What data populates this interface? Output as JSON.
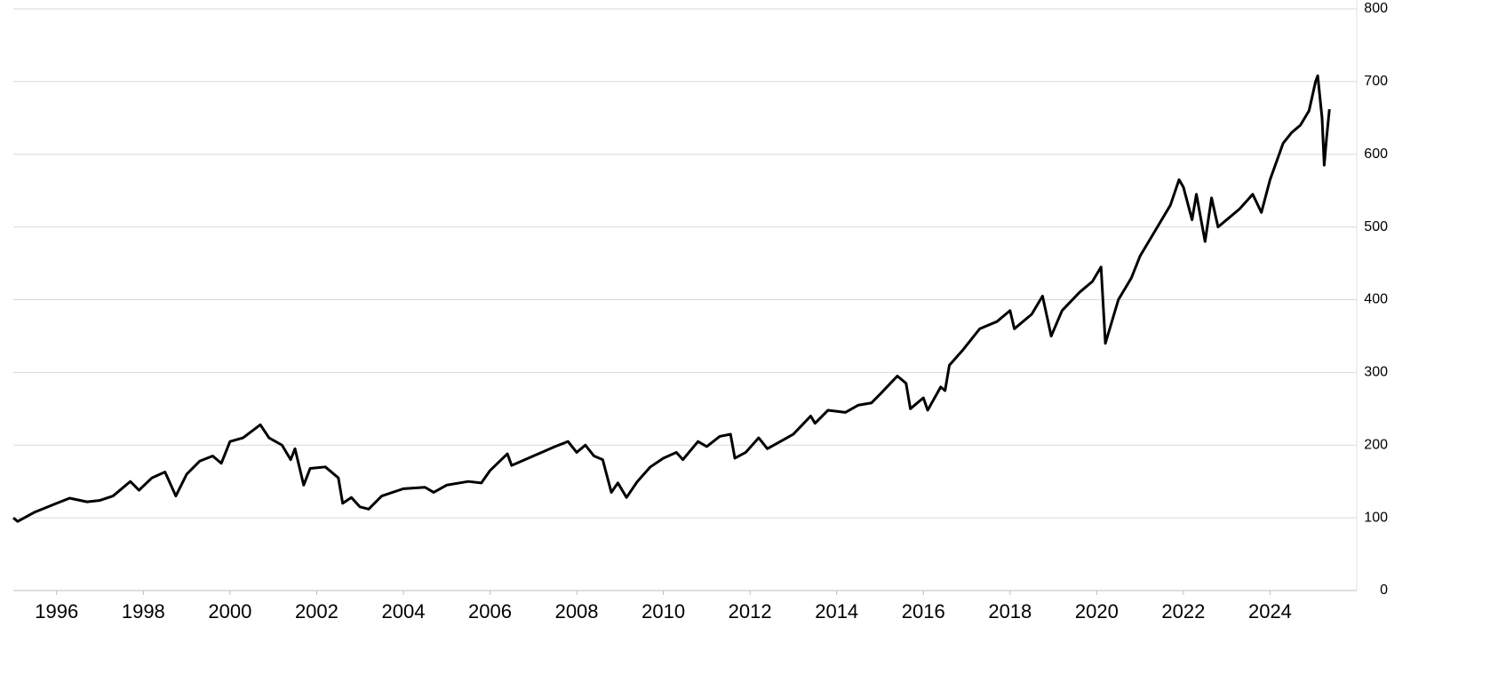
{
  "chart_data": {
    "type": "line",
    "color": "#000000",
    "grid": true,
    "y_axis_side": "right",
    "xlim": [
      1995,
      2026
    ],
    "xticks": [
      1996,
      1998,
      2000,
      2002,
      2004,
      2006,
      2008,
      2010,
      2012,
      2014,
      2016,
      2018,
      2020,
      2022,
      2024
    ],
    "ylim": [
      0,
      800
    ],
    "yticks": [
      0,
      100,
      200,
      300,
      400,
      500,
      600,
      700,
      800
    ],
    "x": [
      1995.0,
      1995.1,
      1995.5,
      1996.0,
      1996.3,
      1996.7,
      1997.0,
      1997.3,
      1997.7,
      1997.9,
      1998.2,
      1998.5,
      1998.75,
      1999.0,
      1999.3,
      1999.6,
      1999.8,
      2000.0,
      2000.3,
      2000.7,
      2000.9,
      2001.2,
      2001.4,
      2001.5,
      2001.7,
      2001.85,
      2002.2,
      2002.5,
      2002.6,
      2002.8,
      2003.0,
      2003.2,
      2003.5,
      2004.0,
      2004.5,
      2004.7,
      2005.0,
      2005.5,
      2005.8,
      2006.0,
      2006.4,
      2006.5,
      2007.0,
      2007.5,
      2007.8,
      2008.0,
      2008.2,
      2008.4,
      2008.6,
      2008.8,
      2008.95,
      2009.15,
      2009.4,
      2009.7,
      2010.0,
      2010.3,
      2010.45,
      2010.8,
      2011.0,
      2011.3,
      2011.55,
      2011.65,
      2011.9,
      2012.2,
      2012.4,
      2012.7,
      2013.0,
      2013.4,
      2013.5,
      2013.8,
      2014.2,
      2014.5,
      2014.8,
      2015.0,
      2015.4,
      2015.6,
      2015.7,
      2016.0,
      2016.1,
      2016.4,
      2016.5,
      2016.6,
      2016.9,
      2017.3,
      2017.7,
      2018.0,
      2018.1,
      2018.5,
      2018.75,
      2018.95,
      2019.2,
      2019.6,
      2019.9,
      2020.1,
      2020.2,
      2020.5,
      2020.8,
      2021.0,
      2021.4,
      2021.7,
      2021.9,
      2022.0,
      2022.2,
      2022.3,
      2022.5,
      2022.65,
      2022.8,
      2023.0,
      2023.3,
      2023.6,
      2023.8,
      2024.0,
      2024.3,
      2024.5,
      2024.7,
      2024.9,
      2025.05,
      2025.1,
      2025.2,
      2025.25,
      2025.3,
      2025.37
    ],
    "values": [
      100,
      95,
      108,
      120,
      127,
      122,
      124,
      130,
      150,
      138,
      155,
      163,
      130,
      160,
      178,
      185,
      175,
      205,
      210,
      228,
      210,
      200,
      180,
      195,
      145,
      168,
      170,
      155,
      120,
      128,
      115,
      112,
      130,
      140,
      142,
      135,
      145,
      150,
      148,
      165,
      188,
      172,
      185,
      198,
      205,
      190,
      200,
      185,
      180,
      135,
      148,
      128,
      150,
      170,
      182,
      190,
      180,
      205,
      198,
      212,
      215,
      182,
      190,
      210,
      195,
      205,
      215,
      240,
      230,
      248,
      245,
      255,
      258,
      270,
      295,
      285,
      250,
      265,
      248,
      280,
      275,
      310,
      330,
      360,
      370,
      385,
      360,
      380,
      405,
      350,
      385,
      410,
      425,
      445,
      340,
      400,
      430,
      460,
      500,
      530,
      565,
      555,
      510,
      545,
      480,
      540,
      500,
      510,
      525,
      545,
      520,
      565,
      615,
      630,
      640,
      660,
      700,
      708,
      650,
      585,
      620,
      662
    ]
  }
}
